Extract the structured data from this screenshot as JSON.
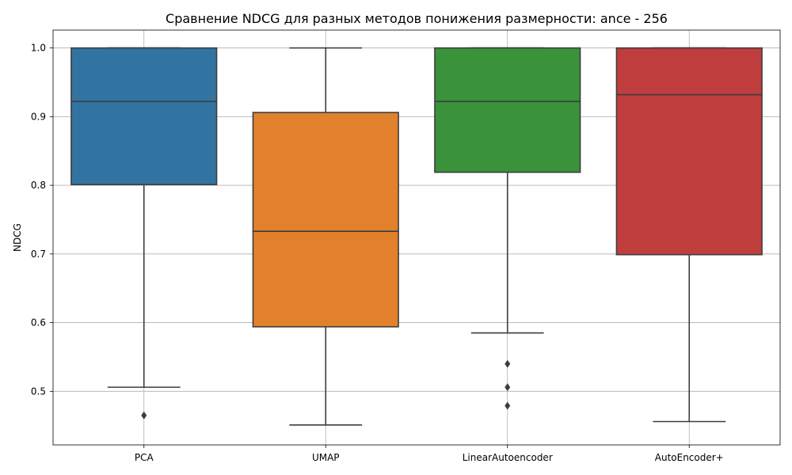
{
  "chart_data": {
    "type": "box",
    "title": "Сравнение NDCG для разных методов понижения размерности: ance - 256",
    "xlabel": "",
    "ylabel": "NDCG",
    "ylim": [
      0.422,
      1.026
    ],
    "yticks": [
      "0.5",
      "0.6",
      "0.7",
      "0.8",
      "0.9",
      "1.0"
    ],
    "ytick_values": [
      0.5,
      0.6,
      0.7,
      0.8,
      0.9,
      1.0
    ],
    "grid": true,
    "categories": [
      "PCA",
      "UMAP",
      "LinearAutoencoder",
      "AutoEncoder+"
    ],
    "boxes": [
      {
        "q1": 0.801,
        "median": 0.922,
        "q3": 1.0,
        "whisker_low": 0.506,
        "whisker_high": 1.0,
        "outliers": [
          0.465
        ],
        "color": "#3274a1"
      },
      {
        "q1": 0.594,
        "median": 0.733,
        "q3": 0.906,
        "whisker_low": 0.451,
        "whisker_high": 1.0,
        "outliers": [],
        "color": "#e1812c"
      },
      {
        "q1": 0.819,
        "median": 0.922,
        "q3": 1.0,
        "whisker_low": 0.585,
        "whisker_high": 1.0,
        "outliers": [
          0.54,
          0.506,
          0.479
        ],
        "color": "#3a923a"
      },
      {
        "q1": 0.699,
        "median": 0.932,
        "q3": 1.0,
        "whisker_low": 0.456,
        "whisker_high": 1.0,
        "outliers": [],
        "color": "#c03d3e"
      }
    ]
  }
}
